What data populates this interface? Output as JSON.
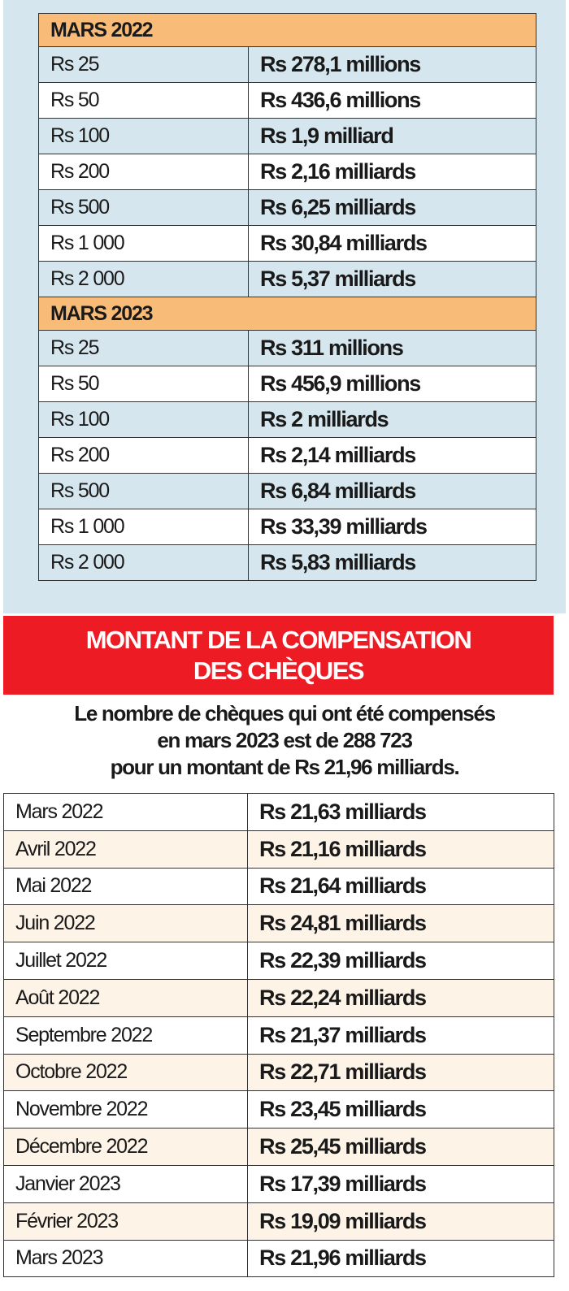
{
  "denominations": {
    "sections": [
      {
        "title": "MARS 2022",
        "rows": [
          {
            "note": "Rs 25",
            "value": "Rs 278,1 millions"
          },
          {
            "note": "Rs 50",
            "value": "Rs 436,6 millions"
          },
          {
            "note": "Rs 100",
            "value": "Rs 1,9 milliard"
          },
          {
            "note": "Rs 200",
            "value": "Rs 2,16 milliards"
          },
          {
            "note": "Rs 500",
            "value": "Rs 6,25 milliards"
          },
          {
            "note": "Rs 1 000",
            "value": "Rs 30,84 milliards"
          },
          {
            "note": "Rs 2 000",
            "value": "Rs 5,37 milliards"
          }
        ]
      },
      {
        "title": "MARS 2023",
        "rows": [
          {
            "note": "Rs 25",
            "value": "Rs 311 millions"
          },
          {
            "note": "Rs 50",
            "value": "Rs 456,9 millions"
          },
          {
            "note": "Rs 100",
            "value": "Rs 2 milliards"
          },
          {
            "note": "Rs 200",
            "value": "Rs 2,14 milliards"
          },
          {
            "note": "Rs 500",
            "value": "Rs 6,84 milliards"
          },
          {
            "note": "Rs 1 000",
            "value": "Rs 33,39 milliards"
          },
          {
            "note": "Rs 2 000",
            "value": "Rs 5,83 milliards"
          }
        ]
      }
    ]
  },
  "cheques": {
    "banner_line1": "MONTANT DE LA COMPENSATION",
    "banner_line2": "DES CHÈQUES",
    "summary_line1": "Le nombre de chèques qui ont été compensés",
    "summary_line2": "en mars 2023 est de 288 723",
    "summary_line3": "pour un montant de Rs 21,96 milliards.",
    "rows": [
      {
        "month": "Mars 2022",
        "value": "Rs 21,63 milliards"
      },
      {
        "month": "Avril 2022",
        "value": "Rs 21,16 milliards"
      },
      {
        "month": "Mai 2022",
        "value": "Rs 21,64 milliards"
      },
      {
        "month": "Juin 2022",
        "value": "Rs 24,81 milliards"
      },
      {
        "month": "Juillet 2022",
        "value": "Rs 22,39 milliards"
      },
      {
        "month": "Août 2022",
        "value": "Rs 22,24 milliards"
      },
      {
        "month": "Septembre 2022",
        "value": "Rs 21,37 milliards"
      },
      {
        "month": "Octobre 2022",
        "value": "Rs 22,71 milliards"
      },
      {
        "month": "Novembre 2022",
        "value": "Rs 23,45 milliards"
      },
      {
        "month": "Décembre 2022",
        "value": "Rs 25,45 milliards"
      },
      {
        "month": "Janvier 2023",
        "value": "Rs 17,39 milliards"
      },
      {
        "month": "Février 2023",
        "value": "Rs 19,09 milliards"
      },
      {
        "month": "Mars 2023",
        "value": "Rs 21,96 milliards"
      }
    ]
  },
  "colors": {
    "panel_bg": "#d5e6ee",
    "section_header": "#f9bb78",
    "banner": "#ed1c24",
    "alt_row": "#fdf3e7"
  }
}
